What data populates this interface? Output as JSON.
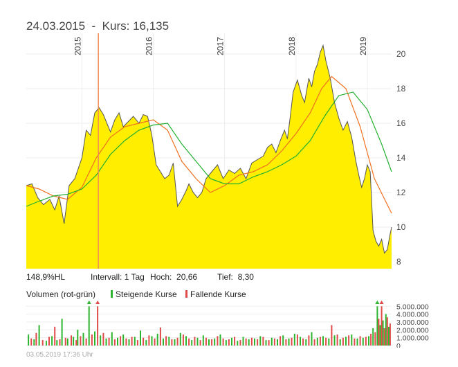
{
  "header": {
    "date": "24.03.2015",
    "separator": "-",
    "kurs_label": "Kurs:",
    "kurs_value": "16,135"
  },
  "stats": {
    "hl": "148,9%HL",
    "interval_label": "Intervall:",
    "interval_value": "1 Tag",
    "hoch_label": "Hoch:",
    "hoch_value": "20,66",
    "tief_label": "Tief:",
    "tief_value": "8,30"
  },
  "volume_legend": {
    "title": "Volumen (rot-grün)",
    "rising": "Steigende Kurse",
    "falling": "Fallende Kurse"
  },
  "timestamp": "03.05.2019 17:36 Uhr",
  "colors": {
    "area": "#ffee00",
    "price_line": "#555555",
    "ma_short": "#f07020",
    "ma_long": "#22b030",
    "cursor": "#f08c50",
    "vol_up": "#2cb52c",
    "vol_down": "#e04a4a",
    "grid": "#eeeeee"
  },
  "chart_data": [
    {
      "type": "area",
      "x_axis": {
        "labels": [
          "2015",
          "2016",
          "2017",
          "2018",
          "2019"
        ],
        "values": [
          2015.0,
          2016.0,
          2017.0,
          2018.0,
          2019.0
        ]
      },
      "y_axis": {
        "position": "right",
        "ticks": [
          8,
          10,
          12,
          14,
          16,
          18,
          20
        ],
        "tick_labels": [
          "8",
          "10",
          "12",
          "14",
          "16",
          "18",
          "20"
        ],
        "range": [
          7.6,
          21.2
        ]
      },
      "x_range": [
        2014.22,
        2019.34
      ],
      "grid": true,
      "cursor": {
        "x": 2015.23,
        "label": "24.03.2015"
      },
      "series": [
        {
          "role": "price",
          "style": "area+line",
          "x": [
            2014.22,
            2014.3,
            2014.38,
            2014.46,
            2014.55,
            2014.62,
            2014.68,
            2014.75,
            2014.82,
            2014.9,
            2015.0,
            2015.06,
            2015.12,
            2015.18,
            2015.24,
            2015.3,
            2015.35,
            2015.4,
            2015.46,
            2015.52,
            2015.58,
            2015.65,
            2015.72,
            2015.8,
            2015.86,
            2015.92,
            2015.98,
            2016.04,
            2016.1,
            2016.16,
            2016.22,
            2016.28,
            2016.34,
            2016.4,
            2016.46,
            2016.5,
            2016.56,
            2016.62,
            2016.68,
            2016.74,
            2016.82,
            2016.9,
            2016.98,
            2017.06,
            2017.14,
            2017.22,
            2017.3,
            2017.38,
            2017.46,
            2017.54,
            2017.6,
            2017.66,
            2017.72,
            2017.78,
            2017.84,
            2017.88,
            2017.92,
            2017.96,
            2018.02,
            2018.08,
            2018.12,
            2018.18,
            2018.22,
            2018.26,
            2018.3,
            2018.34,
            2018.38,
            2018.42,
            2018.48,
            2018.54,
            2018.6,
            2018.66,
            2018.72,
            2018.78,
            2018.84,
            2018.88,
            2018.92,
            2018.96,
            2019.0,
            2019.04,
            2019.08,
            2019.12,
            2019.16,
            2019.2,
            2019.24,
            2019.28,
            2019.32,
            2019.34
          ],
          "y": [
            12.4,
            12.5,
            11.7,
            11.3,
            11.6,
            11.0,
            11.8,
            10.2,
            12.4,
            12.8,
            14.0,
            15.6,
            15.3,
            16.6,
            16.9,
            16.5,
            16.0,
            15.5,
            16.2,
            16.6,
            15.8,
            16.1,
            16.4,
            16.0,
            16.5,
            16.4,
            15.3,
            13.6,
            13.2,
            12.8,
            13.0,
            13.7,
            11.2,
            11.6,
            12.1,
            12.5,
            12.0,
            11.7,
            12.0,
            12.8,
            13.2,
            13.6,
            12.8,
            13.3,
            13.1,
            13.4,
            12.8,
            13.7,
            13.9,
            14.1,
            14.6,
            14.8,
            14.3,
            15.0,
            15.6,
            15.1,
            16.4,
            17.8,
            18.5,
            17.6,
            17.2,
            18.6,
            18.1,
            19.0,
            19.4,
            20.1,
            20.5,
            19.6,
            18.6,
            17.2,
            16.3,
            15.6,
            16.1,
            15.2,
            13.8,
            13.0,
            12.3,
            12.8,
            13.6,
            13.2,
            9.8,
            9.2,
            8.9,
            9.3,
            8.5,
            8.7,
            9.6,
            10.0
          ]
        },
        {
          "role": "moving-average-short",
          "style": "line",
          "x": [
            2014.22,
            2014.4,
            2014.6,
            2014.8,
            2015.0,
            2015.2,
            2015.4,
            2015.6,
            2015.8,
            2016.0,
            2016.2,
            2016.4,
            2016.6,
            2016.8,
            2017.0,
            2017.2,
            2017.4,
            2017.6,
            2017.8,
            2018.0,
            2018.2,
            2018.36,
            2018.5,
            2018.7,
            2018.9,
            2019.1,
            2019.34
          ],
          "y": [
            12.4,
            12.2,
            11.8,
            11.6,
            12.3,
            14.0,
            15.2,
            15.8,
            16.0,
            16.2,
            15.6,
            13.8,
            12.8,
            12.0,
            12.4,
            13.0,
            13.2,
            13.6,
            14.4,
            15.4,
            16.6,
            18.0,
            18.7,
            18.0,
            15.8,
            12.8,
            10.8
          ]
        },
        {
          "role": "moving-average-long",
          "style": "line",
          "x": [
            2014.22,
            2014.4,
            2014.6,
            2014.8,
            2015.0,
            2015.2,
            2015.4,
            2015.6,
            2015.8,
            2016.0,
            2016.2,
            2016.4,
            2016.6,
            2016.8,
            2017.0,
            2017.2,
            2017.4,
            2017.6,
            2017.8,
            2018.0,
            2018.2,
            2018.4,
            2018.6,
            2018.8,
            2019.0,
            2019.2,
            2019.34
          ],
          "y": [
            11.2,
            11.5,
            11.8,
            11.9,
            12.2,
            13.0,
            14.2,
            15.0,
            15.6,
            15.9,
            16.0,
            14.8,
            13.8,
            12.8,
            12.5,
            12.5,
            12.9,
            13.2,
            13.6,
            14.1,
            15.0,
            16.4,
            17.6,
            17.8,
            16.8,
            14.8,
            13.2
          ]
        }
      ]
    },
    {
      "type": "bar",
      "title": "Volumen (rot-grün)",
      "y_axis": {
        "position": "right",
        "ticks": [
          0,
          1000000,
          2000000,
          3000000,
          4000000,
          5000000
        ],
        "tick_labels": [
          "0",
          "1.000.000",
          "2.000.000",
          "3.000.000",
          "4.000.000",
          "5.000.000"
        ],
        "range": [
          0,
          5200000
        ]
      },
      "x_range": [
        2014.22,
        2019.34
      ],
      "series": [
        {
          "name": "Steigende Kurse",
          "color": "#2cb52c",
          "x": [
            2014.25,
            2014.33,
            2014.4,
            2014.5,
            2014.58,
            2014.65,
            2014.72,
            2014.8,
            2014.88,
            2014.94,
            2015.02,
            2015.1,
            2015.18,
            2015.26,
            2015.34,
            2015.42,
            2015.5,
            2015.58,
            2015.66,
            2015.74,
            2015.82,
            2015.9,
            2015.98,
            2016.06,
            2016.14,
            2016.22,
            2016.3,
            2016.38,
            2016.46,
            2016.54,
            2016.62,
            2016.7,
            2016.78,
            2016.86,
            2016.94,
            2017.02,
            2017.1,
            2017.18,
            2017.26,
            2017.34,
            2017.42,
            2017.5,
            2017.58,
            2017.66,
            2017.74,
            2017.82,
            2017.9,
            2017.98,
            2018.06,
            2018.14,
            2018.22,
            2018.3,
            2018.38,
            2018.46,
            2018.54,
            2018.62,
            2018.7,
            2018.78,
            2018.86,
            2018.94,
            2019.02,
            2019.08,
            2019.14,
            2019.18,
            2019.22,
            2019.26,
            2019.3
          ],
          "y": [
            1400000,
            800000,
            2600000,
            600000,
            1200000,
            700000,
            3400000,
            900000,
            1100000,
            2000000,
            1600000,
            5000000,
            1800000,
            1300000,
            900000,
            1700000,
            1000000,
            1400000,
            800000,
            1100000,
            1900000,
            700000,
            1200000,
            1500000,
            900000,
            1100000,
            800000,
            1600000,
            1200000,
            700000,
            1000000,
            1300000,
            800000,
            900000,
            1400000,
            700000,
            1000000,
            600000,
            1100000,
            800000,
            900000,
            1200000,
            700000,
            1000000,
            800000,
            1300000,
            900000,
            1500000,
            1100000,
            800000,
            1700000,
            1000000,
            1200000,
            900000,
            1300000,
            800000,
            1100000,
            1400000,
            900000,
            1000000,
            1200000,
            2200000,
            5000000,
            2600000,
            3200000,
            4000000,
            2400000
          ]
        },
        {
          "name": "Fallende Kurse",
          "color": "#e04a4a",
          "x": [
            2014.29,
            2014.36,
            2014.45,
            2014.54,
            2014.62,
            2014.69,
            2014.77,
            2014.85,
            2014.92,
            2014.98,
            2015.06,
            2015.14,
            2015.22,
            2015.3,
            2015.38,
            2015.46,
            2015.54,
            2015.62,
            2015.7,
            2015.78,
            2015.86,
            2015.94,
            2016.02,
            2016.1,
            2016.18,
            2016.26,
            2016.34,
            2016.42,
            2016.5,
            2016.58,
            2016.66,
            2016.74,
            2016.82,
            2016.9,
            2016.98,
            2017.06,
            2017.14,
            2017.22,
            2017.3,
            2017.38,
            2017.46,
            2017.54,
            2017.62,
            2017.7,
            2017.78,
            2017.86,
            2017.94,
            2018.02,
            2018.1,
            2018.18,
            2018.26,
            2018.34,
            2018.42,
            2018.5,
            2018.58,
            2018.66,
            2018.74,
            2018.82,
            2018.9,
            2018.98,
            2019.05,
            2019.11,
            2019.16,
            2019.2,
            2019.24,
            2019.28,
            2019.32
          ],
          "y": [
            900000,
            1600000,
            700000,
            1100000,
            2400000,
            800000,
            1000000,
            1300000,
            700000,
            1200000,
            900000,
            1400000,
            5000000,
            1600000,
            1000000,
            800000,
            1200000,
            900000,
            1100000,
            700000,
            1000000,
            1300000,
            900000,
            2300000,
            1200000,
            800000,
            1000000,
            1400000,
            900000,
            1100000,
            700000,
            1000000,
            800000,
            1200000,
            900000,
            800000,
            1100000,
            700000,
            900000,
            1000000,
            800000,
            1100000,
            700000,
            900000,
            1200000,
            800000,
            1000000,
            1400000,
            900000,
            1300000,
            800000,
            1100000,
            1000000,
            2600000,
            1400000,
            1000000,
            1300000,
            900000,
            1200000,
            1100000,
            1500000,
            1700000,
            3400000,
            5000000,
            2200000,
            3600000,
            2800000
          ]
        }
      ]
    }
  ]
}
